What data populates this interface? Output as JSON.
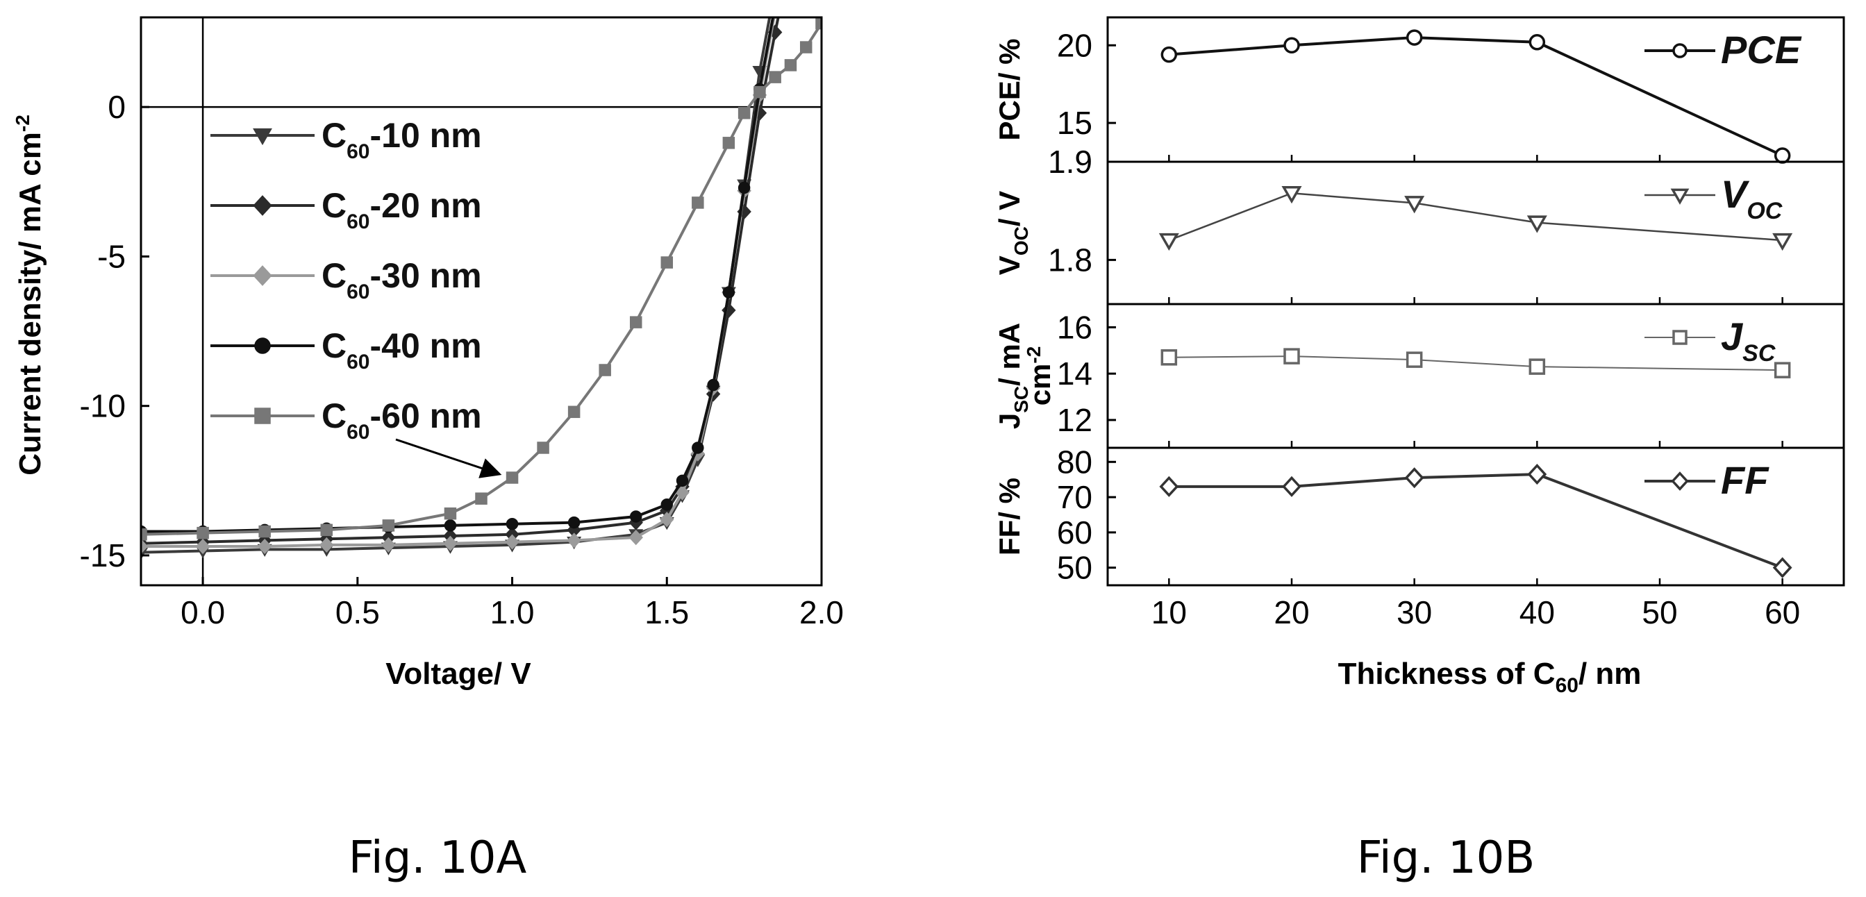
{
  "figure_captions": {
    "left": "Fig. 10A",
    "right": "Fig. 10B"
  },
  "chart_data": [
    {
      "type": "line",
      "xlabel": "Voltage/ V",
      "ylabel": "Current density/ mA cm-2",
      "xlim": [
        -0.2,
        2.0
      ],
      "ylim": [
        -16,
        3
      ],
      "xticks": [
        "0.0",
        "0.5",
        "1.0",
        "1.5",
        "2.0"
      ],
      "yticks": [
        "0",
        "-5",
        "-10",
        "-15"
      ],
      "reference_lines": [
        "x = 0",
        "y = 0"
      ],
      "legend_position": "upper-left",
      "annotation": {
        "text": "",
        "target_series": "C60-60 nm",
        "points_to": [
          1.0,
          -12.1
        ]
      },
      "series": [
        {
          "name": "C60-10 nm",
          "legend": {
            "main": "C",
            "sub": "60",
            "rest": "-10 nm"
          },
          "marker": "triangle-down",
          "color": "#3a3a3a",
          "x": [
            -0.2,
            0.0,
            0.2,
            0.4,
            0.6,
            0.8,
            1.0,
            1.2,
            1.4,
            1.5,
            1.55,
            1.6,
            1.65,
            1.7,
            1.75,
            1.8,
            1.85,
            1.9
          ],
          "y": [
            -14.9,
            -14.85,
            -14.8,
            -14.8,
            -14.75,
            -14.7,
            -14.65,
            -14.55,
            -14.3,
            -13.9,
            -13.0,
            -11.8,
            -9.5,
            -6.2,
            -2.6,
            1.2,
            4.0,
            7.0
          ]
        },
        {
          "name": "C60-20 nm",
          "legend": {
            "main": "C",
            "sub": "60",
            "rest": "-20 nm"
          },
          "marker": "diamond",
          "color": "#2b2b2b",
          "x": [
            -0.2,
            0.0,
            0.2,
            0.4,
            0.6,
            0.8,
            1.0,
            1.2,
            1.4,
            1.5,
            1.55,
            1.6,
            1.65,
            1.7,
            1.75,
            1.8,
            1.85,
            1.9
          ],
          "y": [
            -14.6,
            -14.55,
            -14.5,
            -14.45,
            -14.4,
            -14.35,
            -14.3,
            -14.15,
            -13.9,
            -13.5,
            -12.7,
            -11.6,
            -9.6,
            -6.8,
            -3.5,
            -0.2,
            2.5,
            5.0
          ]
        },
        {
          "name": "C60-30 nm",
          "legend": {
            "main": "C",
            "sub": "60",
            "rest": "-30 nm"
          },
          "marker": "diamond",
          "color": "#9a9a9a",
          "x": [
            -0.2,
            0.0,
            0.2,
            0.4,
            0.6,
            0.8,
            1.0,
            1.2,
            1.4,
            1.5,
            1.55,
            1.6,
            1.65,
            1.7,
            1.75,
            1.8,
            1.85,
            1.9
          ],
          "y": [
            -14.7,
            -14.7,
            -14.7,
            -14.65,
            -14.65,
            -14.6,
            -14.55,
            -14.5,
            -14.4,
            -13.8,
            -12.9,
            -11.6,
            -9.4,
            -6.2,
            -2.8,
            0.4,
            3.2,
            6.0
          ]
        },
        {
          "name": "C60-40 nm",
          "legend": {
            "main": "C",
            "sub": "60",
            "rest": "-40 nm"
          },
          "marker": "circle",
          "color": "#111111",
          "x": [
            -0.2,
            0.0,
            0.2,
            0.4,
            0.6,
            0.8,
            1.0,
            1.2,
            1.4,
            1.5,
            1.55,
            1.6,
            1.65,
            1.7,
            1.75,
            1.8,
            1.85,
            1.9
          ],
          "y": [
            -14.2,
            -14.2,
            -14.15,
            -14.1,
            -14.05,
            -14.0,
            -13.95,
            -13.9,
            -13.7,
            -13.3,
            -12.5,
            -11.4,
            -9.3,
            -6.2,
            -2.7,
            0.6,
            3.4,
            6.2
          ]
        },
        {
          "name": "C60-60 nm",
          "legend": {
            "main": "C",
            "sub": "60",
            "rest": "-60 nm"
          },
          "marker": "square",
          "color": "#777777",
          "x": [
            -0.2,
            0.0,
            0.2,
            0.4,
            0.6,
            0.8,
            0.9,
            1.0,
            1.1,
            1.2,
            1.3,
            1.4,
            1.5,
            1.6,
            1.7,
            1.75,
            1.8,
            1.85,
            1.9,
            1.95,
            2.0
          ],
          "y": [
            -14.3,
            -14.25,
            -14.2,
            -14.15,
            -14.0,
            -13.6,
            -13.1,
            -12.4,
            -11.4,
            -10.2,
            -8.8,
            -7.2,
            -5.2,
            -3.2,
            -1.2,
            -0.2,
            0.5,
            1.0,
            1.4,
            2.0,
            2.8
          ]
        }
      ]
    },
    {
      "type": "line",
      "xlabel": "Thickness of C60/ nm",
      "xlabel_parts": {
        "before": "Thickness of C",
        "sub": "60",
        "after": "/ nm"
      },
      "xlim": [
        5,
        65
      ],
      "xticks": [
        "10",
        "20",
        "30",
        "40",
        "50",
        "60"
      ],
      "x": [
        10,
        20,
        30,
        40,
        60
      ],
      "panels": [
        {
          "name": "PCE",
          "label": {
            "main": "PCE",
            "sub": ""
          },
          "marker": "circle",
          "ylabel": "PCE/ %",
          "ylim": [
            12.5,
            21.8
          ],
          "yticks": [
            15,
            20
          ],
          "ytick_labels": [
            "15",
            "20"
          ],
          "values": [
            19.4,
            20.0,
            20.5,
            20.2,
            12.9
          ]
        },
        {
          "name": "VOC",
          "label": {
            "main": "V",
            "sub": "OC"
          },
          "marker": "triangle-down",
          "ylabel": "VOC/ V",
          "ylabel_parts": {
            "main": "V",
            "sub": "OC",
            "rest": "/ V"
          },
          "ylim": [
            1.755,
            1.9
          ],
          "yticks": [
            1.8,
            1.9
          ],
          "ytick_labels": [
            "1.8",
            "1.9"
          ],
          "values": [
            1.82,
            1.868,
            1.858,
            1.838,
            1.82
          ]
        },
        {
          "name": "JSC",
          "label": {
            "main": "J",
            "sub": "SC"
          },
          "marker": "square",
          "ylabel": "JSC/ mA cm-2",
          "ylabel_parts": {
            "main": "J",
            "sub": "SC",
            "rest": "/ mA",
            "line2": "cm",
            "sup": "-2"
          },
          "ylim": [
            10.8,
            17.0
          ],
          "yticks": [
            12,
            14,
            16
          ],
          "ytick_labels": [
            "12",
            "14",
            "16"
          ],
          "values": [
            14.7,
            14.75,
            14.6,
            14.3,
            14.15
          ]
        },
        {
          "name": "FF",
          "label": {
            "main": "FF",
            "sub": ""
          },
          "marker": "diamond",
          "ylabel": "FF/ %",
          "ylim": [
            45,
            84
          ],
          "yticks": [
            50,
            60,
            70,
            80
          ],
          "ytick_labels": [
            "50",
            "60",
            "70",
            "80"
          ],
          "values": [
            73,
            73,
            75.5,
            76.5,
            50
          ]
        }
      ]
    }
  ]
}
